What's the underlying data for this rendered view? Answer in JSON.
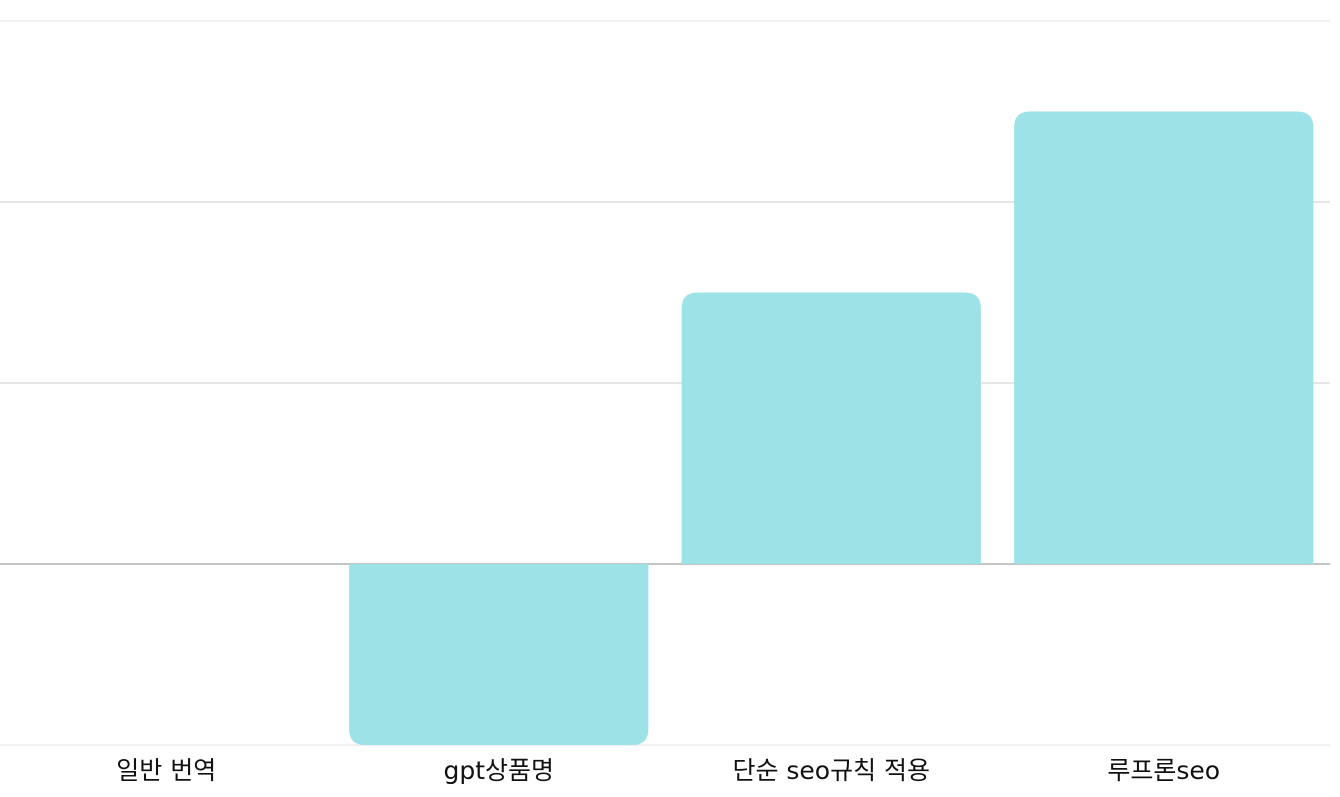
{
  "chart_data": {
    "type": "bar",
    "categories": [
      "일반 번역",
      "gpt상품명",
      "단순 seo규칙 적용",
      "루프론seo"
    ],
    "values": [
      0,
      -1,
      1.5,
      2.5
    ],
    "color": "#9de2e6",
    "ylim": [
      -1,
      3
    ],
    "yticks": [
      -1,
      0,
      1,
      2,
      3
    ],
    "grid": true
  }
}
